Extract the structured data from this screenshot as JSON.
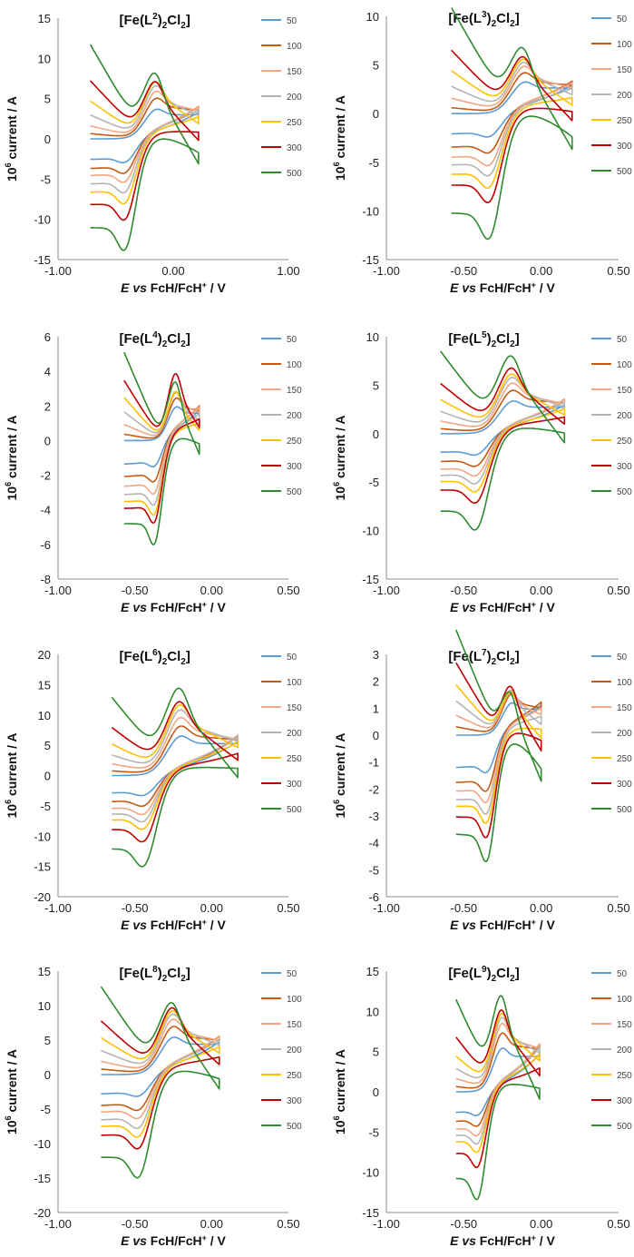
{
  "legend": {
    "labels": [
      "50",
      "100",
      "150",
      "200",
      "250",
      "300",
      "500"
    ],
    "colors": [
      "#5b9bd5",
      "#c55a11",
      "#f4a582",
      "#b4b4b4",
      "#ffc000",
      "#c00000",
      "#2e8b2e"
    ]
  },
  "chart_data": [
    {
      "type": "line",
      "title": {
        "pre": "[Fe(L",
        "sup": "2",
        "mid": ")",
        "sub1": "2",
        "post": "Cl",
        "sub2": "2",
        "post2": "]"
      },
      "xlabel": {
        "italic": "E",
        "vs": " vs",
        "rest": " FcH/FcH",
        "sup": "+",
        "unit": " / V"
      },
      "ylabel": {
        "pre": "10",
        "sup": "6",
        "post": " current / A"
      },
      "xlim": [
        -1.0,
        1.0
      ],
      "ylim": [
        -15,
        15
      ],
      "xticks": [
        "-1.00",
        "0.00",
        "1.00"
      ],
      "yticks": [
        "15",
        "10",
        "5",
        "0",
        "-5",
        "-10",
        "-15"
      ],
      "scan_range": [
        -0.72,
        0.22
      ],
      "E0": -0.28,
      "series": [
        {
          "name": "50",
          "ox_peak": 3.4,
          "red_peak": -3.2
        },
        {
          "name": "100",
          "ox_peak": 4.8,
          "red_peak": -4.6
        },
        {
          "name": "150",
          "ox_peak": 5.8,
          "red_peak": -5.7
        },
        {
          "name": "200",
          "ox_peak": 6.7,
          "red_peak": -7.0
        },
        {
          "name": "250",
          "ox_peak": 7.5,
          "red_peak": -8.3
        },
        {
          "name": "300",
          "ox_peak": 8.0,
          "red_peak": -10.2
        },
        {
          "name": "500",
          "ox_peak": 9.8,
          "red_peak": -13.8
        }
      ]
    },
    {
      "type": "line",
      "title": {
        "pre": "[Fe(L",
        "sup": "3",
        "mid": ")",
        "sub1": "2",
        "post": "Cl",
        "sub2": "2",
        "post2": "]"
      },
      "xlabel": {
        "italic": "E",
        "vs": " vs",
        "rest": " FcH/FcH",
        "sup": "+",
        "unit": " / V"
      },
      "ylabel": {
        "pre": "10",
        "sup": "6",
        "post": " current / A"
      },
      "xlim": [
        -1.0,
        0.5
      ],
      "ylim": [
        -15,
        10
      ],
      "xticks": [
        "-1.00",
        "-0.50",
        "0.00",
        "0.50"
      ],
      "yticks": [
        "10",
        "5",
        "0",
        "-5",
        "-10",
        "-15"
      ],
      "scan_range": [
        -0.58,
        0.2
      ],
      "E0": -0.22,
      "series": [
        {
          "name": "50",
          "ox_peak": 3.0,
          "red_peak": -2.6
        },
        {
          "name": "100",
          "ox_peak": 4.0,
          "red_peak": -4.3
        },
        {
          "name": "150",
          "ox_peak": 4.8,
          "red_peak": -5.6
        },
        {
          "name": "200",
          "ox_peak": 5.4,
          "red_peak": -6.6
        },
        {
          "name": "250",
          "ox_peak": 6.0,
          "red_peak": -7.8
        },
        {
          "name": "300",
          "ox_peak": 6.6,
          "red_peak": -9.2
        },
        {
          "name": "500",
          "ox_peak": 8.2,
          "red_peak": -12.8
        }
      ]
    },
    {
      "type": "line",
      "title": {
        "pre": "[Fe(L",
        "sup": "4",
        "mid": ")",
        "sub1": "2",
        "post": "Cl",
        "sub2": "2",
        "post2": "]"
      },
      "xlabel": {
        "italic": "E",
        "vs": " vs",
        "rest": " FcH/FcH",
        "sup": "+",
        "unit": " / V"
      },
      "ylabel": {
        "pre": "10",
        "sup": "6",
        "post": " current / A"
      },
      "xlim": [
        -1.0,
        0.5
      ],
      "ylim": [
        -8,
        6
      ],
      "xticks": [
        "-1.00",
        "-0.50",
        "0.00",
        "0.50"
      ],
      "yticks": [
        "6",
        "4",
        "2",
        "0",
        "-2",
        "-4",
        "-6",
        "-8"
      ],
      "scan_range": [
        -0.57,
        -0.08
      ],
      "E0": -0.3,
      "series": [
        {
          "name": "50",
          "ox_peak": 1.8,
          "red_peak": -1.7
        },
        {
          "name": "100",
          "ox_peak": 2.4,
          "red_peak": -2.6
        },
        {
          "name": "150",
          "ox_peak": 2.9,
          "red_peak": -3.3
        },
        {
          "name": "200",
          "ox_peak": 3.2,
          "red_peak": -3.9
        },
        {
          "name": "250",
          "ox_peak": 3.5,
          "red_peak": -4.4
        },
        {
          "name": "300",
          "ox_peak": 4.8,
          "red_peak": -4.9
        },
        {
          "name": "500",
          "ox_peak": 4.9,
          "red_peak": -6.0
        }
      ]
    },
    {
      "type": "line",
      "title": {
        "pre": "[Fe(L",
        "sup": "5",
        "mid": ")",
        "sub1": "2",
        "post": "Cl",
        "sub2": "2",
        "post2": "]"
      },
      "xlabel": {
        "italic": "E",
        "vs": " vs",
        "rest": " FcH/FcH",
        "sup": "+",
        "unit": " / V"
      },
      "ylabel": {
        "pre": "10",
        "sup": "6",
        "post": " current / A"
      },
      "xlim": [
        -1.0,
        0.5
      ],
      "ylim": [
        -15,
        10
      ],
      "xticks": [
        "-1.00",
        "-0.50",
        "0.00",
        "0.50"
      ],
      "yticks": [
        "10",
        "5",
        "0",
        "-5",
        "-10",
        "-15"
      ],
      "scan_range": [
        -0.65,
        0.15
      ],
      "E0": -0.3,
      "series": [
        {
          "name": "50",
          "ox_peak": 3.1,
          "red_peak": -2.4
        },
        {
          "name": "100",
          "ox_peak": 4.2,
          "red_peak": -3.6
        },
        {
          "name": "150",
          "ox_peak": 5.0,
          "red_peak": -4.6
        },
        {
          "name": "200",
          "ox_peak": 5.7,
          "red_peak": -5.4
        },
        {
          "name": "250",
          "ox_peak": 6.2,
          "red_peak": -6.2
        },
        {
          "name": "300",
          "ox_peak": 7.0,
          "red_peak": -7.3
        },
        {
          "name": "500",
          "ox_peak": 8.6,
          "red_peak": -10.0
        }
      ]
    },
    {
      "type": "line",
      "title": {
        "pre": "[Fe(L",
        "sup": "6",
        "mid": ")",
        "sub1": "2",
        "post": "Cl",
        "sub2": "2",
        "post2": "]"
      },
      "xlabel": {
        "italic": "E",
        "vs": " vs",
        "rest": " FcH/FcH",
        "sup": "+",
        "unit": " / V"
      },
      "ylabel": {
        "pre": "10",
        "sup": "6",
        "post": " current / A"
      },
      "xlim": [
        -1.0,
        0.5
      ],
      "ylim": [
        -20,
        20
      ],
      "xticks": [
        "-1.00",
        "-0.50",
        "0.00",
        "0.50"
      ],
      "yticks": [
        "20",
        "15",
        "10",
        "5",
        "0",
        "-5",
        "-10",
        "-15",
        "-20"
      ],
      "scan_range": [
        -0.65,
        0.17
      ],
      "E0": -0.32,
      "series": [
        {
          "name": "50",
          "ox_peak": 6.0,
          "red_peak": -3.6
        },
        {
          "name": "100",
          "ox_peak": 7.6,
          "red_peak": -5.4
        },
        {
          "name": "150",
          "ox_peak": 9.0,
          "red_peak": -6.8
        },
        {
          "name": "200",
          "ox_peak": 10.3,
          "red_peak": -8.0
        },
        {
          "name": "250",
          "ox_peak": 11.2,
          "red_peak": -9.2
        },
        {
          "name": "300",
          "ox_peak": 11.9,
          "red_peak": -11.2
        },
        {
          "name": "500",
          "ox_peak": 14.3,
          "red_peak": -15.2
        }
      ]
    },
    {
      "type": "line",
      "title": {
        "pre": "[Fe(L",
        "sup": "7",
        "mid": ")",
        "sub1": "2",
        "post": "Cl",
        "sub2": "2",
        "post2": "]"
      },
      "xlabel": {
        "italic": "E",
        "vs": " vs",
        "rest": " FcH/FcH",
        "sup": "+",
        "unit": " / V"
      },
      "ylabel": {
        "pre": "10",
        "sup": "6",
        "post": " current / A"
      },
      "xlim": [
        -1.0,
        0.5
      ],
      "ylim": [
        -6,
        3
      ],
      "xticks": [
        "-1.00",
        "-0.50",
        "0.00",
        "0.50"
      ],
      "yticks": [
        "3",
        "2",
        "1",
        "0",
        "-1",
        "-2",
        "-3",
        "-4",
        "-5",
        "-6"
      ],
      "scan_range": [
        -0.55,
        0.0
      ],
      "E0": -0.27,
      "series": [
        {
          "name": "50",
          "ox_peak": 1.1,
          "red_peak": -1.5
        },
        {
          "name": "100",
          "ox_peak": 1.5,
          "red_peak": -2.2
        },
        {
          "name": "150",
          "ox_peak": 1.7,
          "red_peak": -2.6
        },
        {
          "name": "200",
          "ox_peak": 1.9,
          "red_peak": -3.0
        },
        {
          "name": "250",
          "ox_peak": 2.0,
          "red_peak": -3.3
        },
        {
          "name": "300",
          "ox_peak": 2.4,
          "red_peak": -3.8
        },
        {
          "name": "500",
          "ox_peak": 2.5,
          "red_peak": -4.6
        }
      ]
    },
    {
      "type": "line",
      "title": {
        "pre": "[Fe(L",
        "sup": "8",
        "mid": ")",
        "sub1": "2",
        "post": "Cl",
        "sub2": "2",
        "post2": "]"
      },
      "xlabel": {
        "italic": "E",
        "vs": " vs",
        "rest": " FcH/FcH",
        "sup": "+",
        "unit": " / V"
      },
      "ylabel": {
        "pre": "10",
        "sup": "6",
        "post": " current / A"
      },
      "xlim": [
        -1.0,
        0.5
      ],
      "ylim": [
        -20,
        15
      ],
      "xticks": [
        "-1.00",
        "-0.50",
        "0.00",
        "0.50"
      ],
      "yticks": [
        "15",
        "10",
        "5",
        "0",
        "-5",
        "-10",
        "-15",
        "-20"
      ],
      "scan_range": [
        -0.72,
        0.05
      ],
      "E0": -0.36,
      "series": [
        {
          "name": "50",
          "ox_peak": 5.0,
          "red_peak": -3.5
        },
        {
          "name": "100",
          "ox_peak": 6.6,
          "red_peak": -5.6
        },
        {
          "name": "150",
          "ox_peak": 7.8,
          "red_peak": -6.8
        },
        {
          "name": "200",
          "ox_peak": 8.8,
          "red_peak": -8.2
        },
        {
          "name": "250",
          "ox_peak": 9.6,
          "red_peak": -9.4
        },
        {
          "name": "300",
          "ox_peak": 10.5,
          "red_peak": -11.0
        },
        {
          "name": "500",
          "ox_peak": 12.1,
          "red_peak": -15.0
        }
      ]
    },
    {
      "type": "line",
      "title": {
        "pre": "[Fe(L",
        "sup": "9",
        "mid": ")",
        "sub1": "2",
        "post": "Cl",
        "sub2": "2",
        "post2": "]"
      },
      "xlabel": {
        "italic": "E",
        "vs": " vs",
        "rest": " FcH/FcH",
        "sup": "+",
        "unit": " / V"
      },
      "ylabel": {
        "pre": "10",
        "sup": "6",
        "post": " current / A"
      },
      "xlim": [
        -1.0,
        0.5
      ],
      "ylim": [
        -15,
        15
      ],
      "xticks": [
        "-1.00",
        "-0.50",
        "0.00",
        "0.50"
      ],
      "yticks": [
        "15",
        "10",
        "5",
        "0",
        "-5",
        "-10",
        "-15"
      ],
      "scan_range": [
        -0.55,
        -0.01
      ],
      "E0": -0.33,
      "series": [
        {
          "name": "50",
          "ox_peak": 5.0,
          "red_peak": -3.2
        },
        {
          "name": "100",
          "ox_peak": 6.8,
          "red_peak": -4.6
        },
        {
          "name": "150",
          "ox_peak": 8.0,
          "red_peak": -5.8
        },
        {
          "name": "200",
          "ox_peak": 8.8,
          "red_peak": -6.8
        },
        {
          "name": "250",
          "ox_peak": 9.4,
          "red_peak": -7.8
        },
        {
          "name": "300",
          "ox_peak": 10.0,
          "red_peak": -9.6
        },
        {
          "name": "500",
          "ox_peak": 12.0,
          "red_peak": -13.5
        }
      ]
    }
  ]
}
